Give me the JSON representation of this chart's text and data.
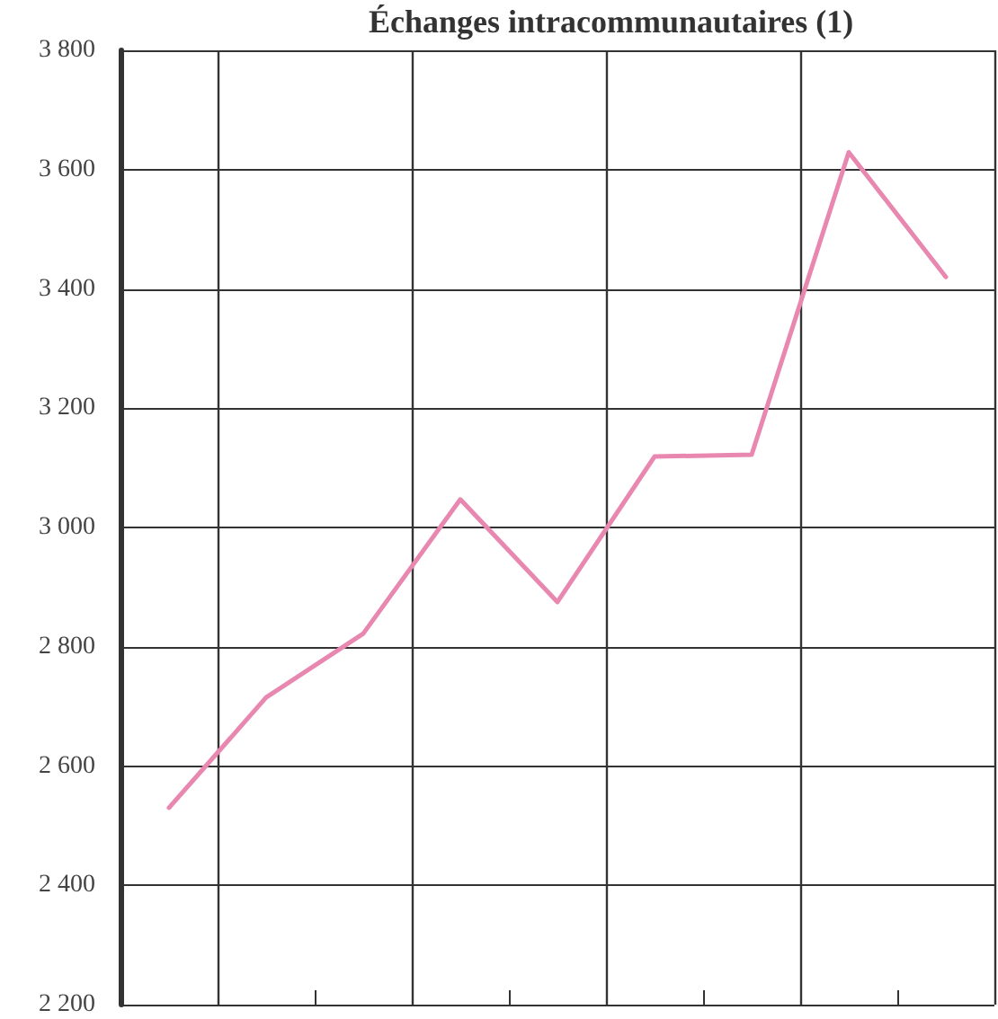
{
  "chart_data": {
    "type": "line",
    "title": "Échanges intracommunautaires (1)",
    "categories": [
      null,
      null,
      null,
      null,
      null,
      null,
      null,
      null,
      null
    ],
    "series": [
      {
        "color": "#e888b0",
        "values": [
          2530,
          2715,
          2822,
          3047,
          2875,
          3119,
          3122,
          3629,
          3420
        ]
      }
    ],
    "ylim": [
      2200,
      3800
    ],
    "yticks": [
      {
        "value": 2200,
        "label": "2 200"
      },
      {
        "value": 2400,
        "label": "2 400"
      },
      {
        "value": 2600,
        "label": "2 600"
      },
      {
        "value": 2800,
        "label": "2 800"
      },
      {
        "value": 3000,
        "label": "3 000"
      },
      {
        "value": 3200,
        "label": "3 200"
      },
      {
        "value": 3400,
        "label": "3 400"
      },
      {
        "value": 3600,
        "label": "3 600"
      },
      {
        "value": 3800,
        "label": "3 800"
      }
    ],
    "grid": true,
    "marker": "none",
    "line_style": "solid"
  }
}
